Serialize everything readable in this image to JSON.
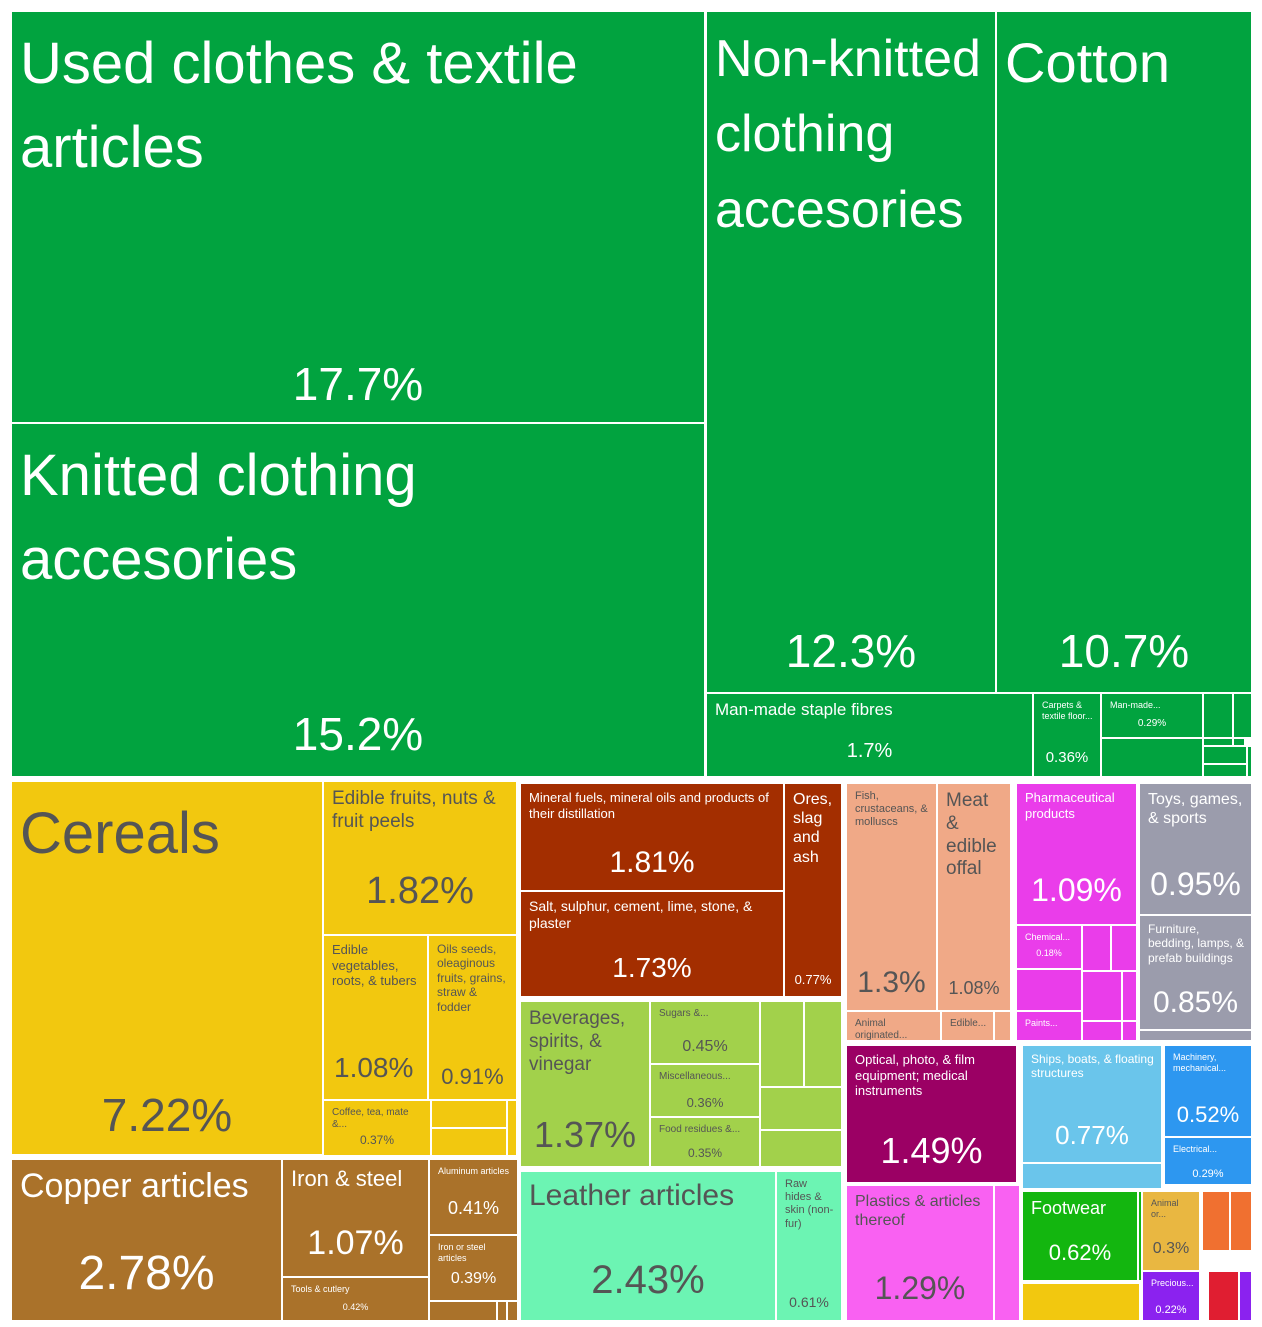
{
  "chart_data": {
    "type": "treemap",
    "colors": {
      "textiles": "#01a33f",
      "vegetable": "#f2c80f",
      "minerals": "#a32e00",
      "foodstuffs": "#a2d14b",
      "animal": "#f0a987",
      "chemicals": "#ea3dea",
      "misc": "#9b9cac",
      "metals": "#aa722a",
      "hides": "#6cf4b3",
      "instruments": "#9b0064",
      "machines": "#2d97f0",
      "transport": "#6ac5eb",
      "plastics": "#f961f2",
      "footwear": "#13b60f",
      "stone": "#e9b741",
      "precious": "#8b22ef",
      "weapons": "#e01e31",
      "arts": "#f07030",
      "dark_text": "#555555",
      "light_text": "#ffffff"
    },
    "items": [
      {
        "id": "used-clothes",
        "name": "Used clothes & textile articles",
        "value": "17.7%",
        "sector": "textiles"
      },
      {
        "id": "knitted-clothing",
        "name": "Knitted clothing accesories",
        "value": "15.2%",
        "sector": "textiles"
      },
      {
        "id": "non-knitted-clothing",
        "name": "Non-knitted clothing accesories",
        "value": "12.3%",
        "sector": "textiles"
      },
      {
        "id": "cotton",
        "name": "Cotton",
        "value": "10.7%",
        "sector": "textiles"
      },
      {
        "id": "man-made-staple",
        "name": "Man-made staple fibres",
        "value": "1.7%",
        "sector": "textiles"
      },
      {
        "id": "carpets",
        "name": "Carpets & textile floor...",
        "value": "0.36%",
        "sector": "textiles"
      },
      {
        "id": "man-made-filaments",
        "name": "Man-made...",
        "value": "0.29%",
        "sector": "textiles"
      },
      {
        "id": "cereals",
        "name": "Cereals",
        "value": "7.22%",
        "sector": "vegetable"
      },
      {
        "id": "edible-fruits",
        "name": "Edible fruits, nuts & fruit peels",
        "value": "1.82%",
        "sector": "vegetable"
      },
      {
        "id": "edible-vegetables",
        "name": "Edible vegetables, roots, & tubers",
        "value": "1.08%",
        "sector": "vegetable"
      },
      {
        "id": "oil-seeds",
        "name": "Oils seeds, oleaginous fruits, grains, straw & fodder",
        "value": "0.91%",
        "sector": "vegetable"
      },
      {
        "id": "coffee-tea",
        "name": "Coffee, tea, mate &...",
        "value": "0.37%",
        "sector": "vegetable"
      },
      {
        "id": "mineral-fuels",
        "name": "Mineral fuels, mineral oils and products of their distillation",
        "value": "1.81%",
        "sector": "minerals"
      },
      {
        "id": "salt-sulphur",
        "name": "Salt, sulphur, cement, lime, stone, & plaster",
        "value": "1.73%",
        "sector": "minerals"
      },
      {
        "id": "ores-slag",
        "name": "Ores, slag and ash",
        "value": "0.77%",
        "sector": "minerals"
      },
      {
        "id": "beverages",
        "name": "Beverages, spirits, & vinegar",
        "value": "1.37%",
        "sector": "foodstuffs"
      },
      {
        "id": "sugars",
        "name": "Sugars &...",
        "value": "0.45%",
        "sector": "foodstuffs"
      },
      {
        "id": "misc-edible",
        "name": "Miscellaneous...",
        "value": "0.36%",
        "sector": "foodstuffs"
      },
      {
        "id": "food-residues",
        "name": "Food residues &...",
        "value": "0.35%",
        "sector": "foodstuffs"
      },
      {
        "id": "fish",
        "name": "Fish, crustaceans, & molluscs",
        "value": "1.3%",
        "sector": "animal"
      },
      {
        "id": "meat",
        "name": "Meat & edible offal",
        "value": "1.08%",
        "sector": "animal"
      },
      {
        "id": "animal-originated",
        "name": "Animal originated...",
        "value": "",
        "sector": "animal"
      },
      {
        "id": "edible-animal",
        "name": "Edible...",
        "value": "",
        "sector": "animal"
      },
      {
        "id": "pharma",
        "name": "Pharmaceutical products",
        "value": "1.09%",
        "sector": "chemicals"
      },
      {
        "id": "chemical",
        "name": "Chemical...",
        "value": "0.18%",
        "sector": "chemicals"
      },
      {
        "id": "paints",
        "name": "Paints...",
        "value": "",
        "sector": "chemicals"
      },
      {
        "id": "toys",
        "name": "Toys, games, & sports",
        "value": "0.95%",
        "sector": "misc"
      },
      {
        "id": "furniture",
        "name": "Furniture, bedding, lamps, & prefab buildings",
        "value": "0.85%",
        "sector": "misc"
      },
      {
        "id": "copper",
        "name": "Copper articles",
        "value": "2.78%",
        "sector": "metals"
      },
      {
        "id": "iron-steel",
        "name": "Iron & steel",
        "value": "1.07%",
        "sector": "metals"
      },
      {
        "id": "aluminum",
        "name": "Aluminum articles",
        "value": "0.41%",
        "sector": "metals"
      },
      {
        "id": "iron-steel-articles",
        "name": "Iron or steel articles",
        "value": "0.39%",
        "sector": "metals"
      },
      {
        "id": "tools",
        "name": "Tools & cutlery",
        "value": "0.42%",
        "sector": "metals"
      },
      {
        "id": "leather",
        "name": "Leather articles",
        "value": "2.43%",
        "sector": "hides"
      },
      {
        "id": "raw-hides",
        "name": "Raw hides & skin (non-fur)",
        "value": "0.61%",
        "sector": "hides"
      },
      {
        "id": "optical",
        "name": "Optical, photo, & film equipment; medical instruments",
        "value": "1.49%",
        "sector": "instruments"
      },
      {
        "id": "ships",
        "name": "Ships, boats, & floating structures",
        "value": "0.77%",
        "sector": "transport"
      },
      {
        "id": "machinery",
        "name": "Machinery, mechanical...",
        "value": "0.52%",
        "sector": "machines"
      },
      {
        "id": "electrical",
        "name": "Electrical...",
        "value": "0.29%",
        "sector": "machines"
      },
      {
        "id": "plastics",
        "name": "Plastics & articles thereof",
        "value": "1.29%",
        "sector": "plastics"
      },
      {
        "id": "footwear",
        "name": "Footwear",
        "value": "0.62%",
        "sector": "footwear"
      },
      {
        "id": "animal-or",
        "name": "Animal or...",
        "value": "0.3%",
        "sector": "stone"
      },
      {
        "id": "precious",
        "name": "Precious...",
        "value": "0.22%",
        "sector": "precious"
      }
    ]
  }
}
